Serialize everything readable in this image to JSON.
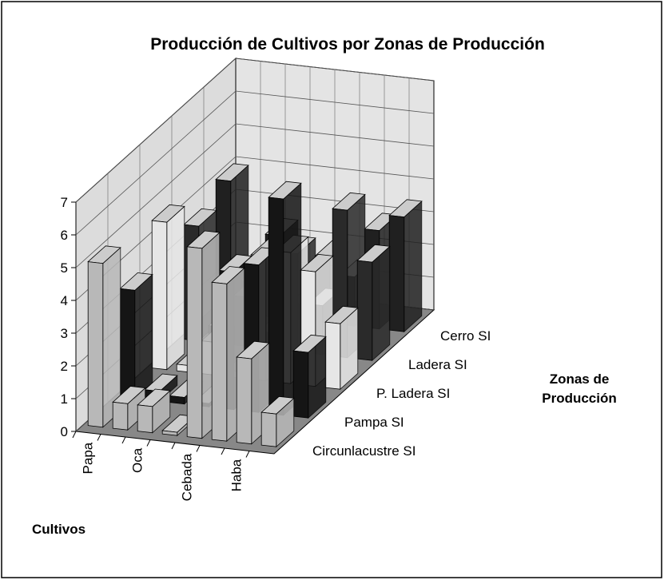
{
  "chart_data": {
    "type": "bar3d",
    "title": "Producción de Cultivos por Zonas de Producción",
    "x_label": "Cultivos",
    "z_label": "Zonas de Producción",
    "categories": [
      "Papa",
      null,
      "Oca",
      null,
      "Cebada",
      null,
      "Haba",
      null
    ],
    "series": [
      {
        "name": "Circunlacustre SI",
        "color": "#b8b8b8",
        "values": [
          5,
          0.8,
          0.8,
          0.1,
          5.8,
          4.8,
          2.6,
          1
        ]
      },
      {
        "name": "Pampa SI",
        "color": "#151515",
        "values": [
          3.3,
          0.3,
          0.2,
          0.1,
          4.2,
          4.5,
          6.6,
          2
        ]
      },
      {
        "name": "P. Ladera SI",
        "color": "#e6e6e6",
        "values": [
          4.5,
          0.2,
          1,
          0.2,
          3.8,
          4,
          3.5,
          2
        ]
      },
      {
        "name": "Ladera SI",
        "color": "#2a2a2a",
        "values": [
          3.5,
          0.5,
          1.5,
          0.5,
          3,
          1.5,
          4.5,
          3
        ]
      },
      {
        "name": "Cerro SI",
        "color": "#202020",
        "values": [
          4,
          1,
          2.5,
          0.5,
          2,
          1.5,
          3,
          3.5
        ]
      }
    ],
    "ylim": [
      0,
      7
    ],
    "yticks": [
      0,
      1,
      2,
      3,
      4,
      5,
      6,
      7
    ],
    "grid": true
  }
}
